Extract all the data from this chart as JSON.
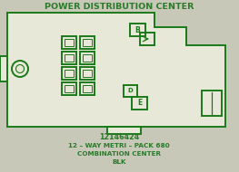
{
  "title": "POWER DISTRIBUTION CENTER",
  "line1": "12146424",
  "line2": "12 – WAY METRI – PACK 680",
  "line3": "COMBINATION CENTER",
  "line4": "BLK",
  "bg_color": "#c8c8b8",
  "green": "#1a7a1a",
  "text_green": "#2a7a2a"
}
